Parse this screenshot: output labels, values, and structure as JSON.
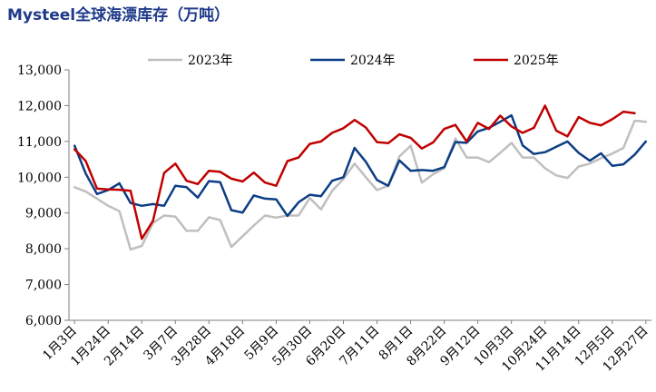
{
  "chart_data": {
    "type": "line",
    "title": "Mysteel全球海漂库存（万吨）",
    "xlabel": "",
    "ylabel": "",
    "ylim": [
      6000,
      13000
    ],
    "y_ticks": [
      "6,000",
      "7,000",
      "8,000",
      "9,000",
      "10,000",
      "11,000",
      "12,000",
      "13,000"
    ],
    "x_tick_labels": [
      "1月3日",
      "1月24日",
      "2月14日",
      "3月7日",
      "3月28日",
      "4月18日",
      "5月9日",
      "5月30日",
      "6月20日",
      "7月11日",
      "8月1日",
      "8月22日",
      "9月12日",
      "10月3日",
      "10月24日",
      "11月14日",
      "12月5日",
      "12月27日"
    ],
    "grid": false,
    "legend_position": "top",
    "series": [
      {
        "name": "2023年",
        "color": "#bfbfbf",
        "values": [
          9720,
          9600,
          9400,
          9200,
          9050,
          7980,
          8080,
          8720,
          8930,
          8900,
          8500,
          8500,
          8880,
          8800,
          8050,
          8350,
          8650,
          8930,
          8870,
          8930,
          8930,
          9420,
          9100,
          9620,
          9950,
          10380,
          10000,
          9640,
          9760,
          10580,
          10880,
          9850,
          10080,
          10250,
          11080,
          10550,
          10550,
          10420,
          10680,
          10960,
          10550,
          10550,
          10250,
          10050,
          9980,
          10300,
          10380,
          10530,
          10660,
          10820,
          11580,
          11550
        ]
      },
      {
        "name": "2024年",
        "color": "#0b3d85",
        "values": [
          10880,
          10100,
          9530,
          9640,
          9830,
          9280,
          9200,
          9250,
          9200,
          9760,
          9720,
          9430,
          9890,
          9860,
          9080,
          9010,
          9490,
          9400,
          9380,
          8920,
          9300,
          9510,
          9470,
          9900,
          10000,
          10820,
          10430,
          9920,
          9760,
          10470,
          10180,
          10200,
          10180,
          10280,
          10980,
          10960,
          11280,
          11380,
          11550,
          11730,
          10890,
          10650,
          10700,
          10850,
          11000,
          10680,
          10460,
          10670,
          10320,
          10360,
          10630,
          11000
        ]
      },
      {
        "name": "2025年",
        "color": "#c00000",
        "values": [
          10780,
          10450,
          9680,
          9660,
          9650,
          9620,
          8280,
          8780,
          10120,
          10380,
          9900,
          9810,
          10180,
          10150,
          9960,
          9880,
          10130,
          9850,
          9760,
          10450,
          10550,
          10930,
          11000,
          11240,
          11370,
          11600,
          11390,
          10980,
          10950,
          11200,
          11100,
          10800,
          10970,
          11350,
          11460,
          11000,
          11520,
          11350,
          11720,
          11420,
          11240,
          11380,
          12000,
          11300,
          11140,
          11680,
          11520,
          11450,
          11620,
          11830,
          11790
        ]
      }
    ]
  }
}
